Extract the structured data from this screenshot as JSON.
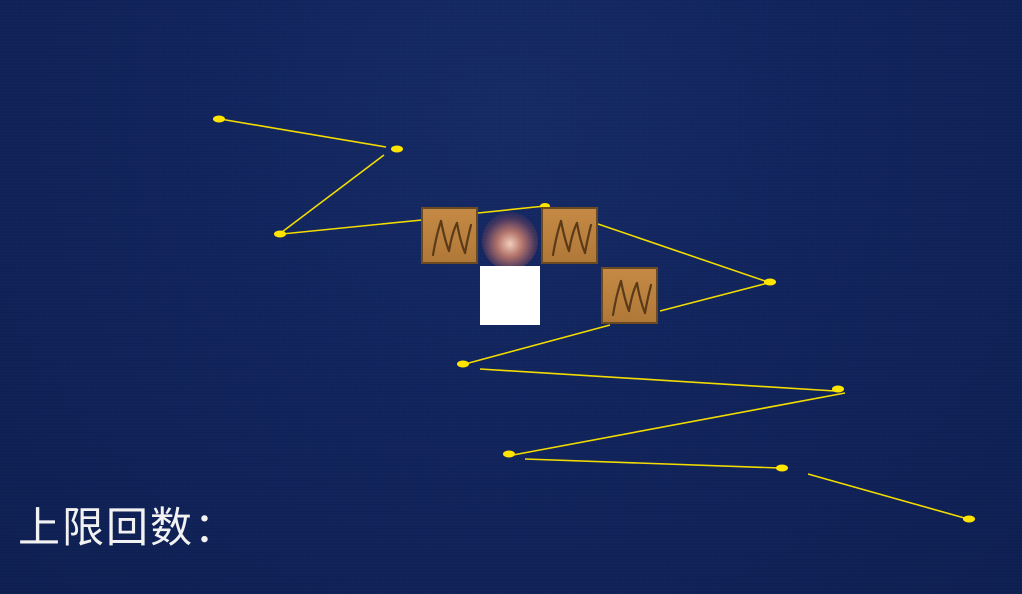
{
  "hud": {
    "limit_label": "上限回数："
  },
  "colors": {
    "background": "#11245c",
    "path_line": "#ffe500",
    "node": "#ffe500",
    "crate": "#b87d3c",
    "crate_border": "#6b4a22",
    "tile": "#ffffff"
  },
  "icons": {
    "crate": "wooden-crate-icon",
    "node": "path-node-icon",
    "glow": "player-glow-icon"
  }
}
